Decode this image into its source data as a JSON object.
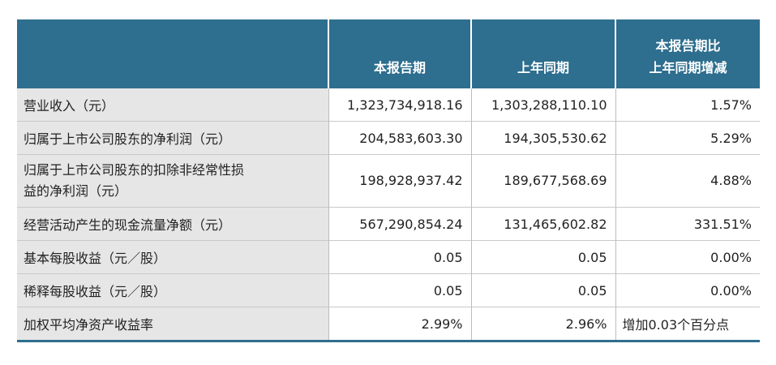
{
  "table": {
    "headers": [
      "",
      "本报告期",
      "上年同期",
      "本报告期比\n上年同期增减"
    ],
    "header_col3_line1": "本报告期比",
    "header_col3_line2": "上年同期增减",
    "rows": [
      {
        "label": "营业收入（元）",
        "current": "1,323,734,918.16",
        "prior": "1,303,288,110.10",
        "change": "1.57%"
      },
      {
        "label": "归属于上市公司股东的净利润（元）",
        "current": "204,583,603.30",
        "prior": "194,305,530.62",
        "change": "5.29%"
      },
      {
        "label_line1": "归属于上市公司股东的扣除非经常性损",
        "label_line2": "益的净利润（元）",
        "current": "198,928,937.42",
        "prior": "189,677,568.69",
        "change": "4.88%"
      },
      {
        "label": "经营活动产生的现金流量净额（元）",
        "current": "567,290,854.24",
        "prior": "131,465,602.82",
        "change": "331.51%"
      },
      {
        "label": "基本每股收益（元／股）",
        "current": "0.05",
        "prior": "0.05",
        "change": "0.00%"
      },
      {
        "label": "稀释每股收益（元／股）",
        "current": "0.05",
        "prior": "0.05",
        "change": "0.00%"
      },
      {
        "label": "加权平均净资产收益率",
        "current": "2.99%",
        "prior": "2.96%",
        "change": "增加0.03个百分点"
      }
    ]
  },
  "colors": {
    "header_bg": "#2e6e8f",
    "label_bg": "#e6e6e6"
  }
}
